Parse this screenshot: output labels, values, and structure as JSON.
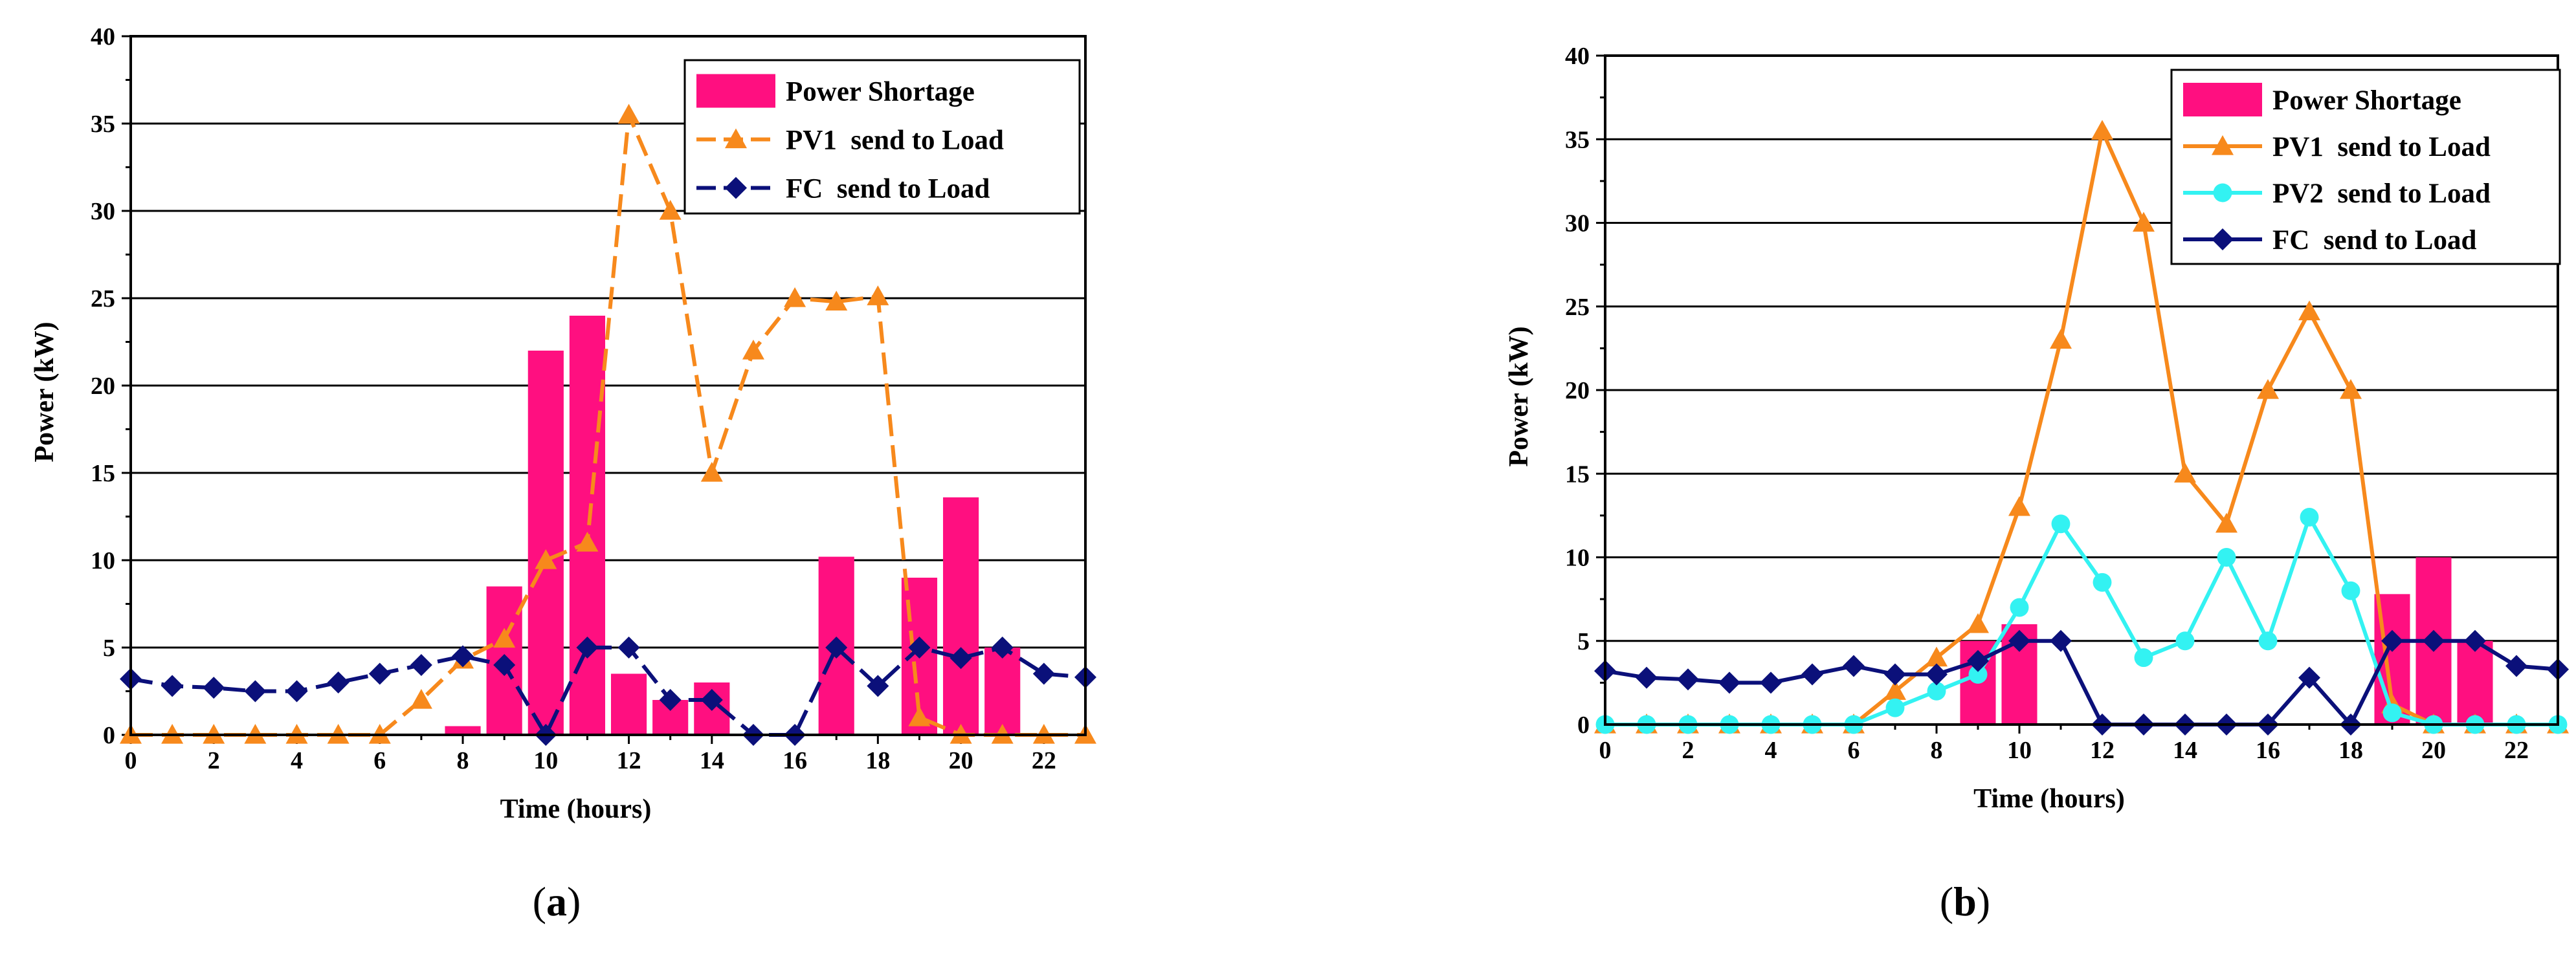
{
  "colors": {
    "shortage": "#ff0f80",
    "pv1": "#f7891c",
    "pv2": "#33f2f2",
    "fc": "#0b107a",
    "grid": "#000000"
  },
  "chart_data": [
    {
      "id": "a",
      "type": "bar+line",
      "caption": {
        "open": "(",
        "letter": "a",
        "close": ")"
      },
      "xlabel": "Time (hours)",
      "ylabel": "Power (kW)",
      "xlim": [
        0,
        23
      ],
      "ylim": [
        0,
        40
      ],
      "xticks": [
        0,
        2,
        4,
        6,
        8,
        10,
        12,
        14,
        16,
        18,
        20,
        22
      ],
      "yticks": [
        0,
        5,
        10,
        15,
        20,
        25,
        30,
        35,
        40
      ],
      "grid": true,
      "legend_position": "top-right",
      "bars": {
        "name": "Power Shortage",
        "x": [
          8,
          9,
          10,
          11,
          12,
          13,
          14,
          17,
          19,
          20,
          21
        ],
        "values": [
          0.5,
          8.5,
          22,
          24,
          3.5,
          2,
          3,
          10.2,
          9,
          13.6,
          5
        ]
      },
      "series": [
        {
          "name": "PV1  send to Load",
          "style": "dashed",
          "marker": "triangle",
          "color_key": "pv1",
          "x": [
            0,
            1,
            2,
            3,
            4,
            5,
            6,
            7,
            8,
            9,
            10,
            11,
            12,
            13,
            14,
            15,
            16,
            17,
            18,
            19,
            20,
            21,
            22,
            23
          ],
          "values": [
            0,
            0,
            0,
            0,
            0,
            0,
            0,
            2,
            4.3,
            5.5,
            10,
            11,
            35.5,
            30,
            15,
            22,
            25,
            24.8,
            25.1,
            1,
            0,
            0,
            0,
            0
          ]
        },
        {
          "name": "FC  send to Load",
          "style": "dashed",
          "marker": "diamond",
          "color_key": "fc",
          "x": [
            0,
            1,
            2,
            3,
            4,
            5,
            6,
            7,
            8,
            9,
            10,
            11,
            12,
            13,
            14,
            15,
            16,
            17,
            18,
            19,
            20,
            21,
            22,
            23
          ],
          "values": [
            3.2,
            2.8,
            2.7,
            2.5,
            2.5,
            3,
            3.5,
            4,
            4.5,
            4,
            0,
            5,
            5,
            2,
            2,
            0,
            0,
            5,
            2.8,
            5,
            4.4,
            5,
            3.5,
            3.3
          ]
        }
      ]
    },
    {
      "id": "b",
      "type": "bar+line",
      "caption": {
        "open": "(",
        "letter": "b",
        "close": ")"
      },
      "xlabel": "Time (hours)",
      "ylabel": "Power (kW)",
      "xlim": [
        0,
        23
      ],
      "ylim": [
        0,
        40
      ],
      "xticks": [
        0,
        2,
        4,
        6,
        8,
        10,
        12,
        14,
        16,
        18,
        20,
        22
      ],
      "yticks": [
        0,
        5,
        10,
        15,
        20,
        25,
        30,
        35,
        40
      ],
      "grid": true,
      "legend_position": "top-right",
      "bars": {
        "name": "Power Shortage",
        "x": [
          9,
          10,
          19,
          20,
          21
        ],
        "values": [
          5,
          6,
          7.8,
          10,
          5
        ]
      },
      "series": [
        {
          "name": "PV1  send to Load",
          "style": "solid",
          "marker": "triangle",
          "color_key": "pv1",
          "x": [
            0,
            1,
            2,
            3,
            4,
            5,
            6,
            7,
            8,
            9,
            10,
            11,
            12,
            13,
            14,
            15,
            16,
            17,
            18,
            19,
            20,
            21,
            22,
            23
          ],
          "values": [
            0,
            0,
            0,
            0,
            0,
            0,
            0,
            2,
            4,
            6,
            13,
            23,
            35.5,
            30,
            15,
            12,
            20,
            24.7,
            20,
            1.2,
            0,
            0,
            0,
            0
          ]
        },
        {
          "name": "PV2  send to Load",
          "style": "solid",
          "marker": "circle",
          "color_key": "pv2",
          "x": [
            0,
            1,
            2,
            3,
            4,
            5,
            6,
            7,
            8,
            9,
            10,
            11,
            12,
            13,
            14,
            15,
            16,
            17,
            18,
            19,
            20,
            21,
            22,
            23
          ],
          "values": [
            0,
            0,
            0,
            0,
            0,
            0,
            0,
            1,
            2,
            3,
            7,
            12,
            8.5,
            4,
            5,
            10,
            5,
            12.4,
            8,
            0.7,
            0,
            0,
            0,
            0
          ]
        },
        {
          "name": "FC  send to Load",
          "style": "solid",
          "marker": "diamond",
          "color_key": "fc",
          "x": [
            0,
            1,
            2,
            3,
            4,
            5,
            6,
            7,
            8,
            9,
            10,
            11,
            12,
            13,
            14,
            15,
            16,
            17,
            18,
            19,
            20,
            21,
            22,
            23
          ],
          "values": [
            3.2,
            2.8,
            2.7,
            2.5,
            2.5,
            3,
            3.5,
            3,
            3,
            3.8,
            5,
            5,
            0,
            0,
            0,
            0,
            0,
            2.8,
            0,
            5,
            5,
            5,
            3.5,
            3.3
          ]
        }
      ]
    }
  ]
}
